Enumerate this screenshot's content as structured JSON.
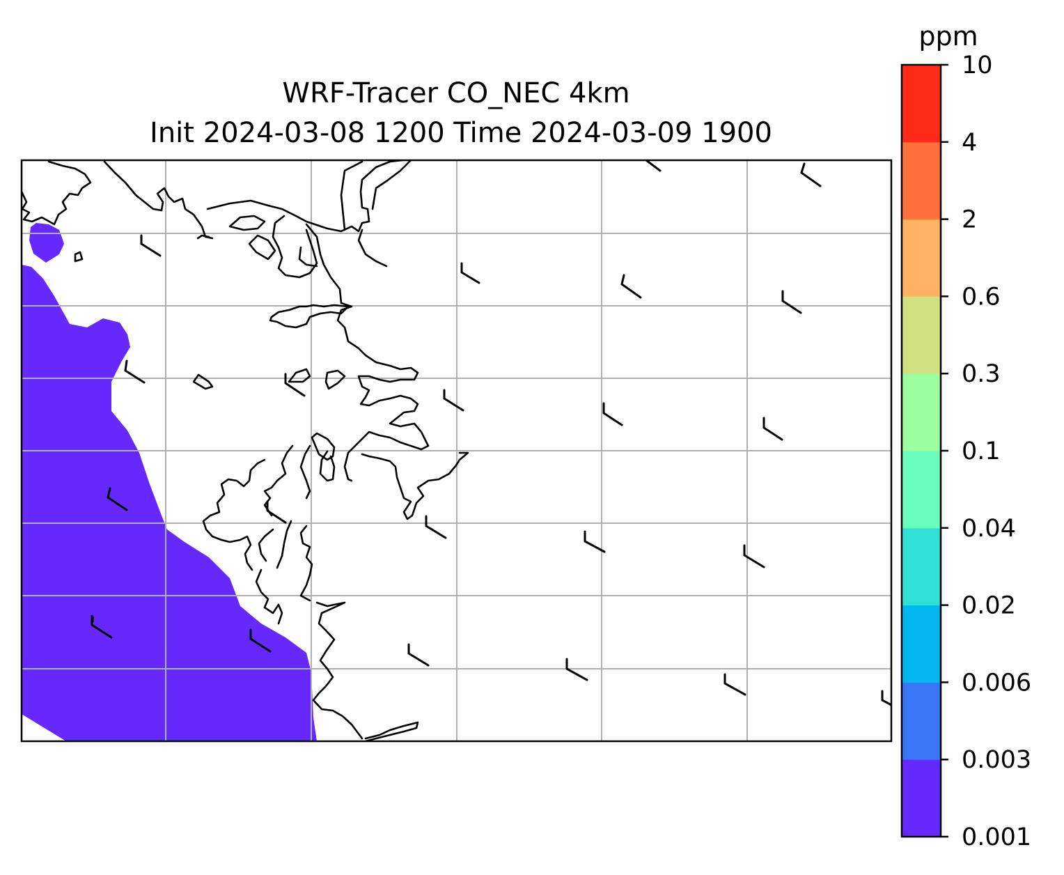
{
  "title": {
    "line1": "WRF-Tracer CO_NEC 4km",
    "line2": "Init 2024-03-08 1200 Time 2024-03-09 1900"
  },
  "colorbar": {
    "unit": "ppm",
    "tick_labels": [
      "0.001",
      "0.003",
      "0.006",
      "0.02",
      "0.04",
      "0.1",
      "0.3",
      "0.6",
      "2",
      "4",
      "10"
    ],
    "colors": [
      "#6528fd",
      "#3876f6",
      "#03b6ee",
      "#2fe0d6",
      "#6afebd",
      "#9bfea0",
      "#d0e182",
      "#ffb261",
      "#ff703d",
      "#ff2a17"
    ]
  },
  "map": {
    "fill_color": "#6528fd",
    "coastline_color": "#000000",
    "grid_color": "#b0b0b0",
    "wind_barb_color": "#000000",
    "shaded_level": "0.001-0.003 ppm"
  }
}
